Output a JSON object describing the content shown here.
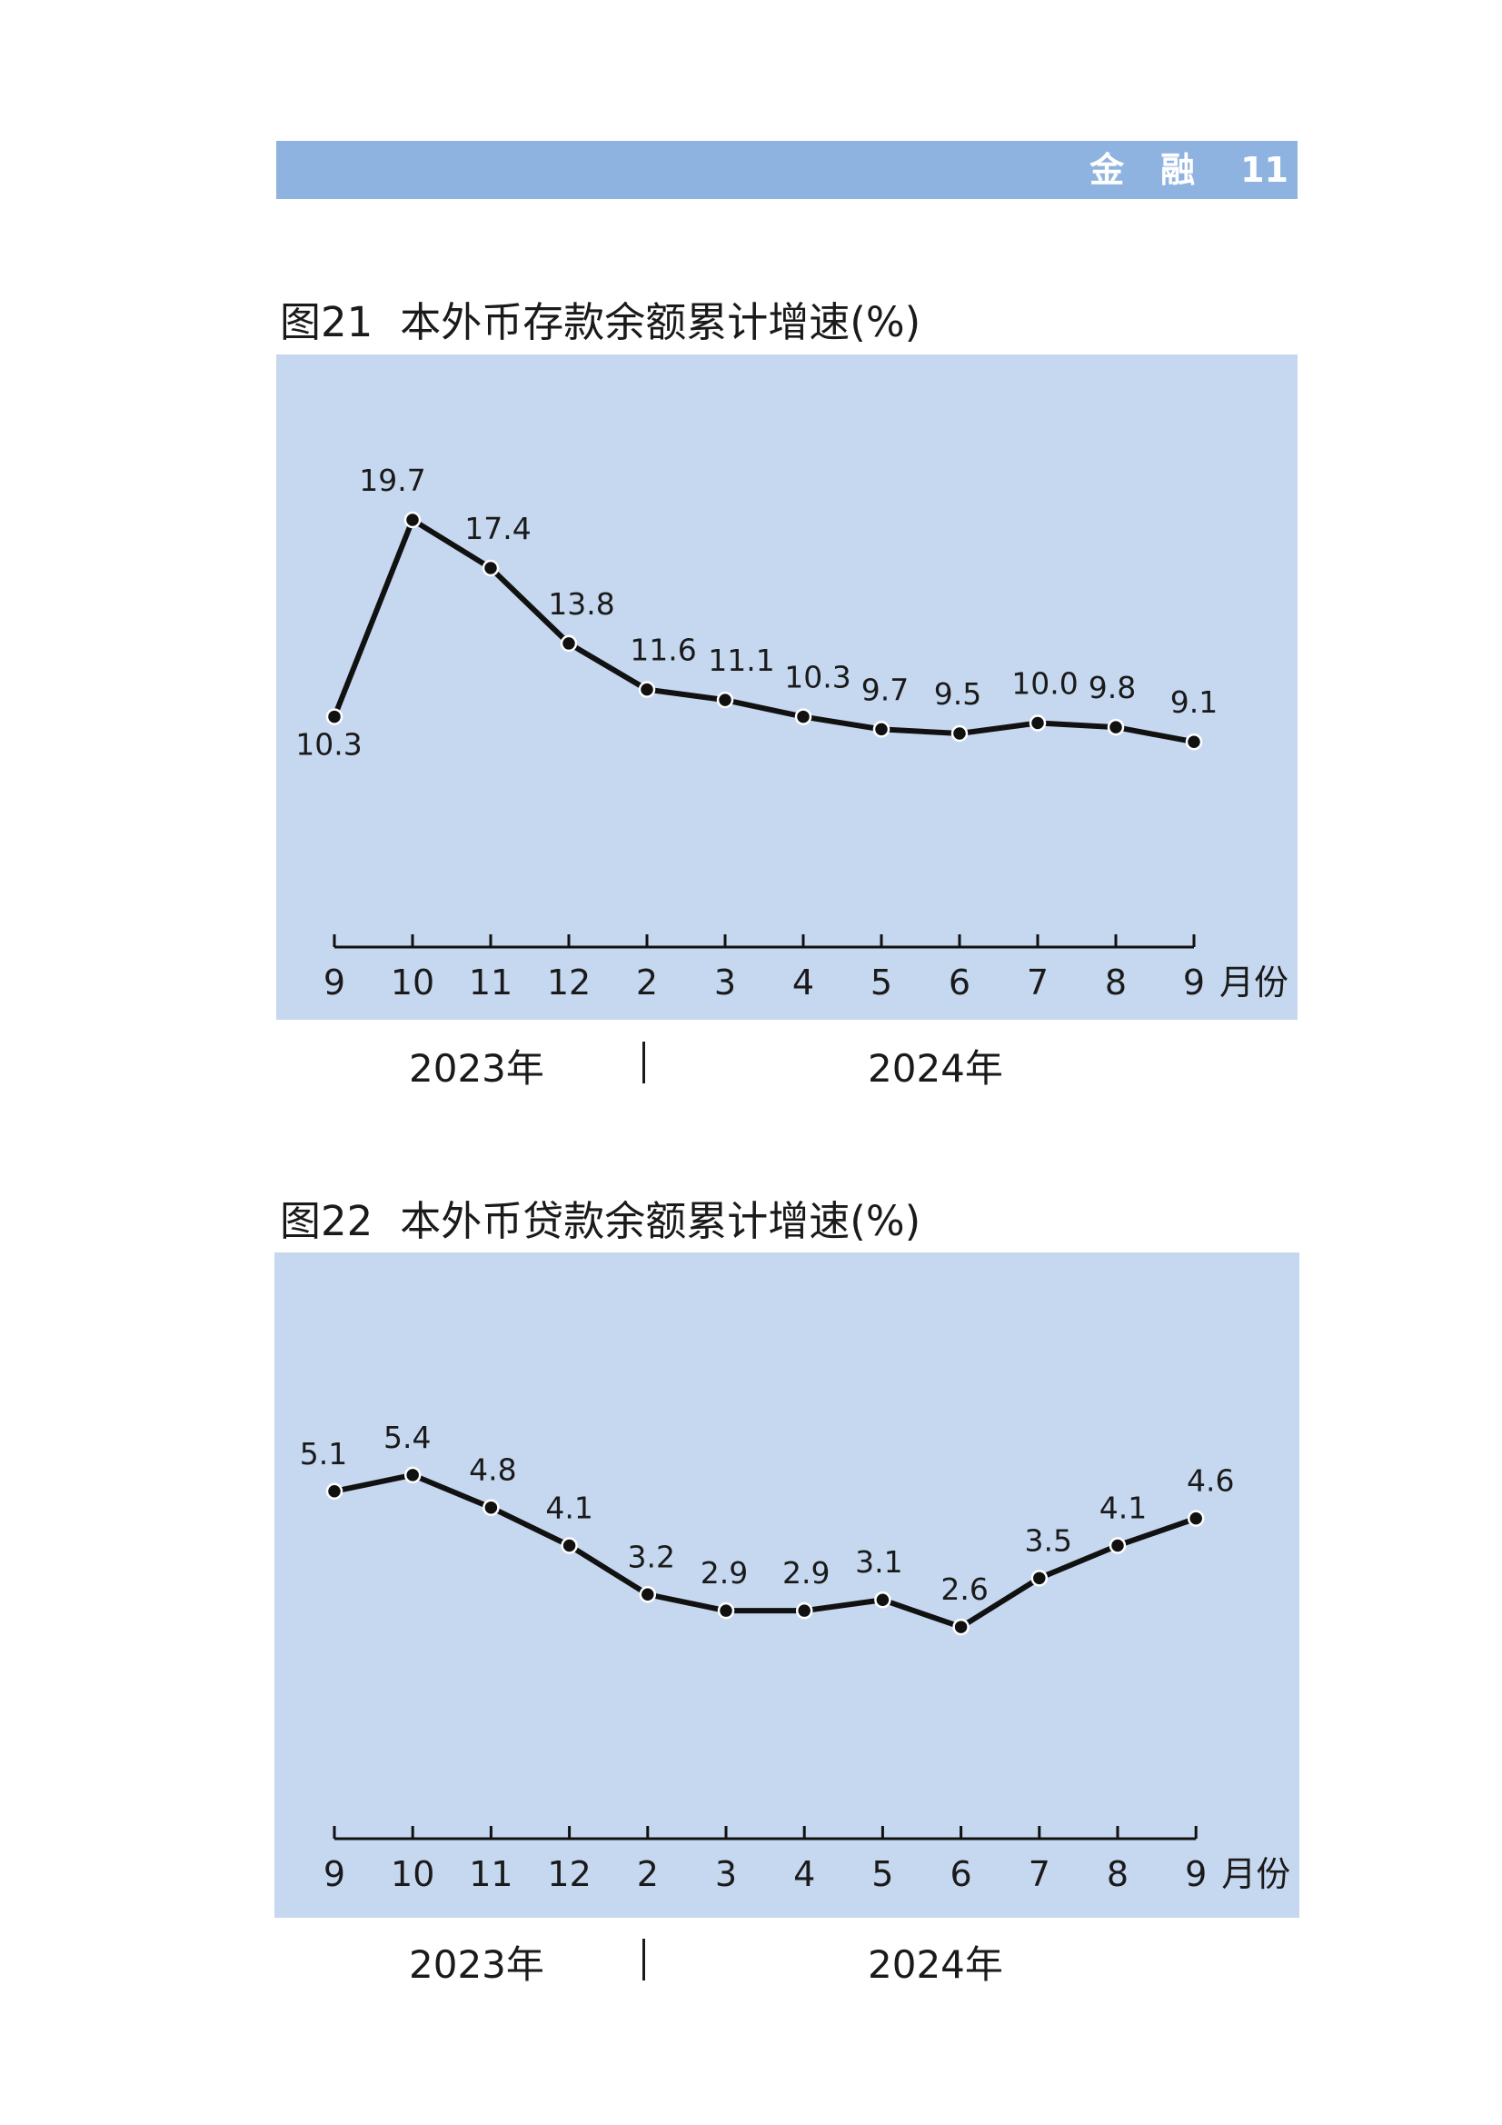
{
  "header": {
    "section": "金融",
    "page": "11"
  },
  "charts": [
    {
      "fig_num": "图21",
      "fig_title": "本外币存款余额累计增速(%)",
      "x_unit": "月份",
      "years": [
        "2023年",
        "2024年"
      ]
    },
    {
      "fig_num": "图22",
      "fig_title": "本外币贷款余额累计增速(%)",
      "x_unit": "月份",
      "years": [
        "2023年",
        "2024年"
      ]
    }
  ],
  "chart_data": [
    {
      "type": "line",
      "title": "本外币存款余额累计增速(%)",
      "xlabel": "月份",
      "ylabel": "",
      "categories": [
        "9",
        "10",
        "11",
        "12",
        "2",
        "3",
        "4",
        "5",
        "6",
        "7",
        "8",
        "9"
      ],
      "series": [
        {
          "values": [
            10.3,
            19.7,
            17.4,
            13.8,
            11.6,
            11.1,
            10.3,
            9.7,
            9.5,
            10.0,
            9.8,
            9.1
          ]
        }
      ],
      "data_labels": [
        "10.3",
        "19.7",
        "17.4",
        "13.8",
        "11.6",
        "11.1",
        "10.3",
        "9.7",
        "9.5",
        "10.0",
        "9.8",
        "9.1"
      ],
      "ylim": [
        -0.7,
        27.6
      ],
      "grid": false,
      "line_color": "#111111"
    },
    {
      "type": "line",
      "title": "本外币贷款余额累计增速(%)",
      "xlabel": "月份",
      "ylabel": "",
      "categories": [
        "9",
        "10",
        "11",
        "12",
        "2",
        "3",
        "4",
        "5",
        "6",
        "7",
        "8",
        "9"
      ],
      "series": [
        {
          "values": [
            5.1,
            5.4,
            4.8,
            4.1,
            3.2,
            2.9,
            2.9,
            3.1,
            2.6,
            3.5,
            4.1,
            4.6
          ]
        }
      ],
      "data_labels": [
        "5.1",
        "5.4",
        "4.8",
        "4.1",
        "3.2",
        "2.9",
        "2.9",
        "3.1",
        "2.6",
        "3.5",
        "4.1",
        "4.6"
      ],
      "ylim": [
        -1.3,
        9.5
      ],
      "grid": false,
      "line_color": "#111111"
    }
  ]
}
